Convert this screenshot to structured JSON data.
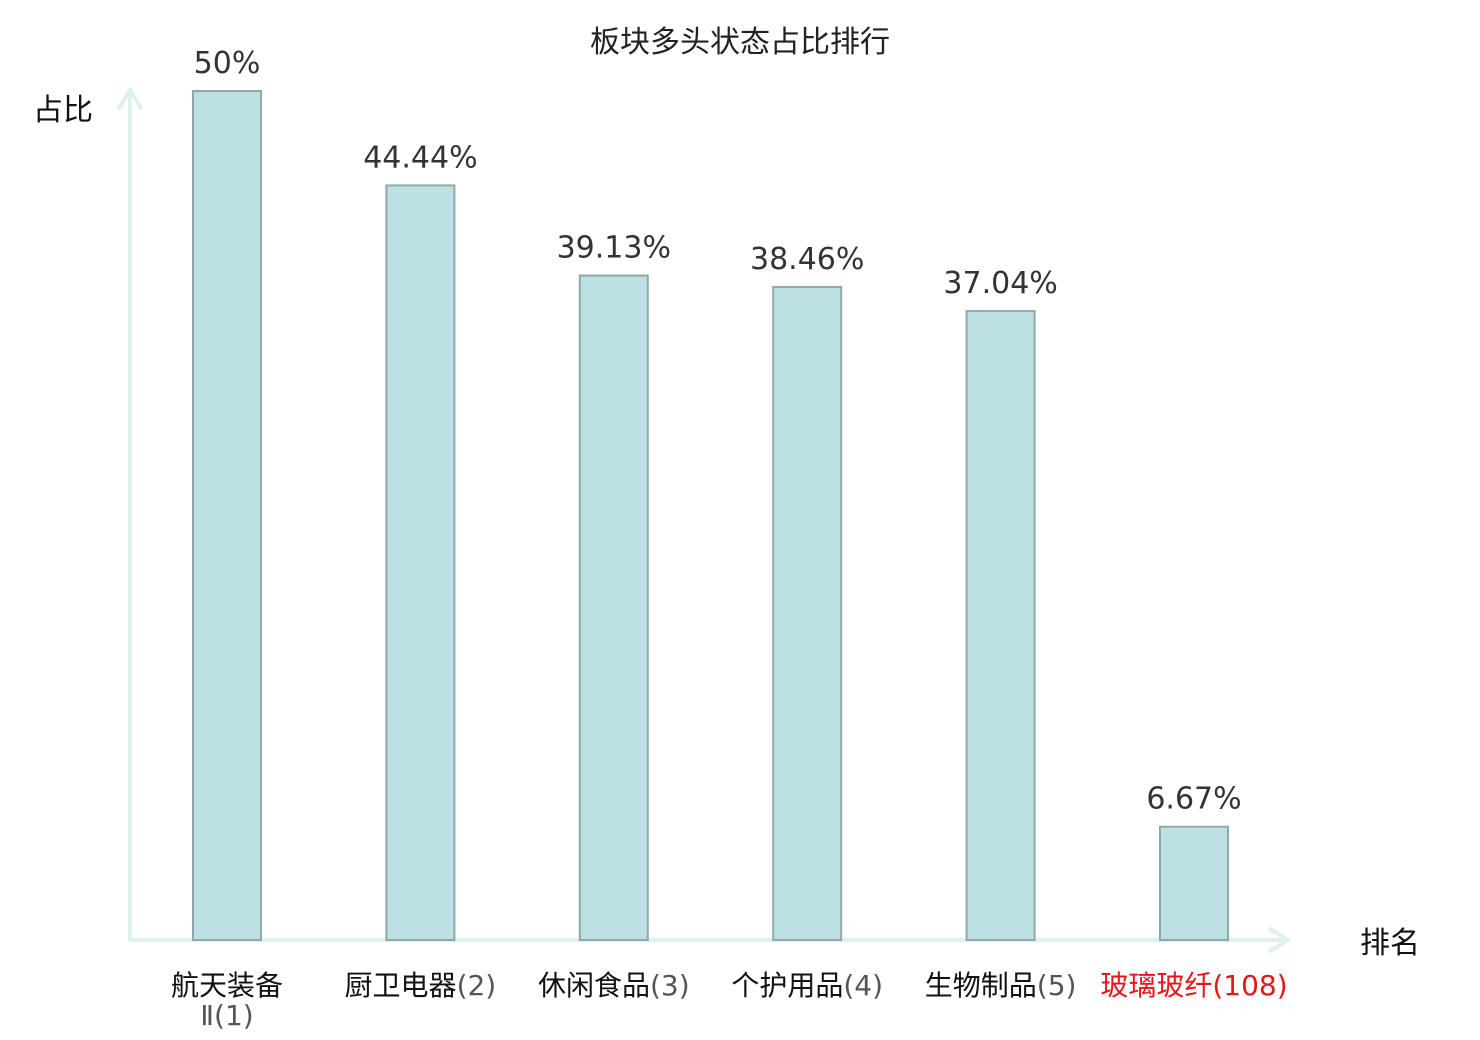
{
  "chart_data": {
    "type": "bar",
    "title": "板块多头状态占比排行",
    "ylabel": "占比",
    "xlabel": "排名",
    "ylim": [
      0,
      50
    ],
    "grid": false,
    "categories": [
      {
        "name": "航天装备Ⅱ",
        "rank": "(1)",
        "highlight": false
      },
      {
        "name": "厨卫电器",
        "rank": "(2)",
        "highlight": false
      },
      {
        "name": "休闲食品",
        "rank": "(3)",
        "highlight": false
      },
      {
        "name": "个护用品",
        "rank": "(4)",
        "highlight": false
      },
      {
        "name": "生物制品",
        "rank": "(5)",
        "highlight": false
      },
      {
        "name": "玻璃玻纤",
        "rank": "(108)",
        "highlight": true
      }
    ],
    "values": [
      50,
      44.44,
      39.13,
      38.46,
      37.04,
      6.67
    ],
    "value_labels": [
      "50%",
      "44.44%",
      "39.13%",
      "38.46%",
      "37.04%",
      "6.67%"
    ]
  },
  "colors": {
    "bar_fill": "#bce0e3",
    "bar_stroke": "#8fa9ab",
    "axis": "#dff1ee",
    "highlight": "#e8161b",
    "rank_text": "#555555",
    "name_text": "#111111"
  }
}
